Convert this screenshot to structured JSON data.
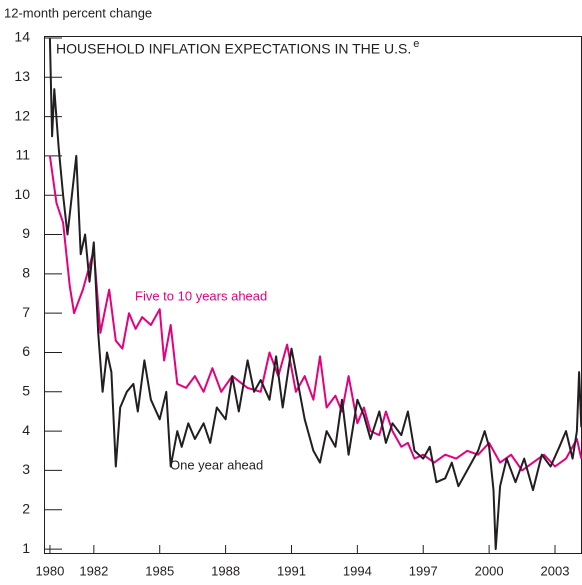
{
  "chart_data": {
    "type": "line",
    "title": "HOUSEHOLD INFLATION EXPECTATIONS IN THE U.S.",
    "title_superscript": "e",
    "y_axis_label": "12-month percent change",
    "xlim": [
      1979.73,
      2004.23
    ],
    "xticks": [
      1980,
      1982,
      1985,
      1988,
      1991,
      1994,
      1997,
      2000,
      2003
    ],
    "ylim": [
      0.9,
      14.05
    ],
    "yticks": [
      1,
      2,
      3,
      4,
      5,
      6,
      7,
      8,
      9,
      10,
      11,
      12,
      13,
      14
    ],
    "series": [
      {
        "name": "Five to 10 years ahead",
        "color": "#e5007e",
        "x": [
          1980.0,
          1980.3,
          1980.6,
          1980.9,
          1981.1,
          1981.5,
          1982.0,
          1982.3,
          1982.7,
          1983.0,
          1983.3,
          1983.6,
          1983.9,
          1984.2,
          1984.6,
          1985.0,
          1985.2,
          1985.5,
          1985.8,
          1986.2,
          1986.6,
          1987.0,
          1987.4,
          1987.8,
          1988.3,
          1989.0,
          1989.6,
          1990.0,
          1990.4,
          1990.8,
          1991.2,
          1991.6,
          1992.0,
          1992.3,
          1992.6,
          1993.0,
          1993.3,
          1993.6,
          1994.0,
          1994.3,
          1994.6,
          1995.0,
          1995.3,
          1995.6,
          1996.0,
          1996.3,
          1996.6,
          1997.0,
          1997.5,
          1998.0,
          1998.5,
          1999.0,
          1999.5,
          2000.0,
          2000.5,
          2001.0,
          2001.5,
          2002.0,
          2002.5,
          2003.0,
          2003.5,
          2004.0,
          2004.2
        ],
        "values": [
          11,
          9.8,
          9.3,
          7.7,
          7,
          7.6,
          8.6,
          6.5,
          7.6,
          6.3,
          6.1,
          7.0,
          6.6,
          6.9,
          6.7,
          7.1,
          5.8,
          6.7,
          5.2,
          5.1,
          5.4,
          5,
          5.6,
          5.0,
          5.4,
          5.1,
          5.0,
          6,
          5.4,
          6.2,
          5,
          5.4,
          4.8,
          5.9,
          4.6,
          4.9,
          4.5,
          5.4,
          4.2,
          4.6,
          4,
          3.9,
          4.5,
          4,
          3.6,
          3.7,
          3.3,
          3.4,
          3.2,
          3.4,
          3.3,
          3.5,
          3.4,
          3.7,
          3.2,
          3.4,
          3.0,
          3.2,
          3.4,
          3.1,
          3.3,
          3.8,
          3.3
        ]
      },
      {
        "name": "One year ahead",
        "color": "#231f20",
        "x": [
          1980.0,
          1980.1,
          1980.2,
          1980.4,
          1980.6,
          1980.8,
          1981.0,
          1981.2,
          1981.4,
          1981.6,
          1981.8,
          1982.0,
          1982.2,
          1982.4,
          1982.6,
          1982.8,
          1983.0,
          1983.2,
          1983.5,
          1983.8,
          1984.0,
          1984.3,
          1984.6,
          1985.0,
          1985.3,
          1985.5,
          1985.8,
          1986.0,
          1986.3,
          1986.6,
          1987.0,
          1987.3,
          1987.6,
          1988.0,
          1988.3,
          1988.6,
          1989.0,
          1989.3,
          1989.6,
          1990.0,
          1990.3,
          1990.6,
          1991.0,
          1991.3,
          1991.6,
          1992.0,
          1992.3,
          1992.6,
          1993.0,
          1993.3,
          1993.6,
          1994.0,
          1994.3,
          1994.6,
          1995.0,
          1995.3,
          1995.6,
          1996.0,
          1996.3,
          1996.6,
          1997.0,
          1997.3,
          1997.6,
          1998.0,
          1998.3,
          1998.6,
          1999.0,
          1999.3,
          1999.5,
          1999.8,
          2000.0,
          2000.2,
          2000.3,
          2000.5,
          2000.8,
          2001.2,
          2001.6,
          2002.0,
          2002.4,
          2002.8,
          2003.2,
          2003.5,
          2003.8,
          2004.0,
          2004.1,
          2004.2
        ],
        "values": [
          14,
          11.5,
          12.7,
          11.2,
          10,
          9,
          10,
          11,
          8.5,
          9,
          7.8,
          8.8,
          6.5,
          5,
          6,
          5.5,
          3.1,
          4.6,
          5,
          5.2,
          4.5,
          5.8,
          4.8,
          4.3,
          5,
          3.1,
          4,
          3.6,
          4.2,
          3.8,
          4.2,
          3.7,
          4.6,
          4.3,
          5.4,
          4.5,
          5.8,
          5,
          5.3,
          4.8,
          5.9,
          4.6,
          6.1,
          5.2,
          4.3,
          3.5,
          3.2,
          4,
          3.6,
          4.8,
          3.4,
          4.8,
          4.4,
          3.8,
          4.5,
          3.7,
          4.2,
          3.9,
          4.5,
          3.5,
          3.3,
          3.6,
          2.7,
          2.8,
          3.2,
          2.6,
          3,
          3.3,
          3.5,
          4.0,
          3.6,
          2.5,
          1.0,
          2.6,
          3.3,
          2.7,
          3.3,
          2.5,
          3.4,
          3.1,
          3.6,
          4,
          3.3,
          4,
          5.5,
          4.1
        ]
      }
    ]
  }
}
